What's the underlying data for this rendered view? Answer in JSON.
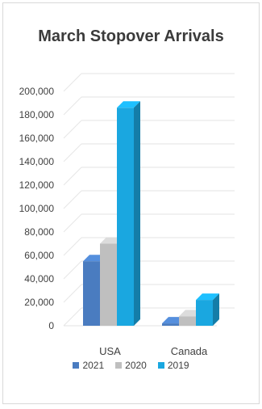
{
  "chart_data": {
    "type": "bar",
    "title": "March Stopover Arrivals",
    "categories": [
      "USA",
      "Canada"
    ],
    "series": [
      {
        "name": "2021",
        "values": [
          55000,
          2000
        ],
        "color": "#4a7cc0"
      },
      {
        "name": "2020",
        "values": [
          70000,
          8000
        ],
        "color": "#bfbfbf"
      },
      {
        "name": "2019",
        "values": [
          186000,
          22000
        ],
        "color": "#1aa7e0"
      }
    ],
    "y_ticks": [
      "0",
      "20,000",
      "40,000",
      "60,000",
      "80,000",
      "100,000",
      "120,000",
      "140,000",
      "160,000",
      "180,000",
      "200,000"
    ],
    "ylim": [
      0,
      200000
    ],
    "grid": true,
    "legend_position": "bottom",
    "style": "3d-clustered-column"
  }
}
